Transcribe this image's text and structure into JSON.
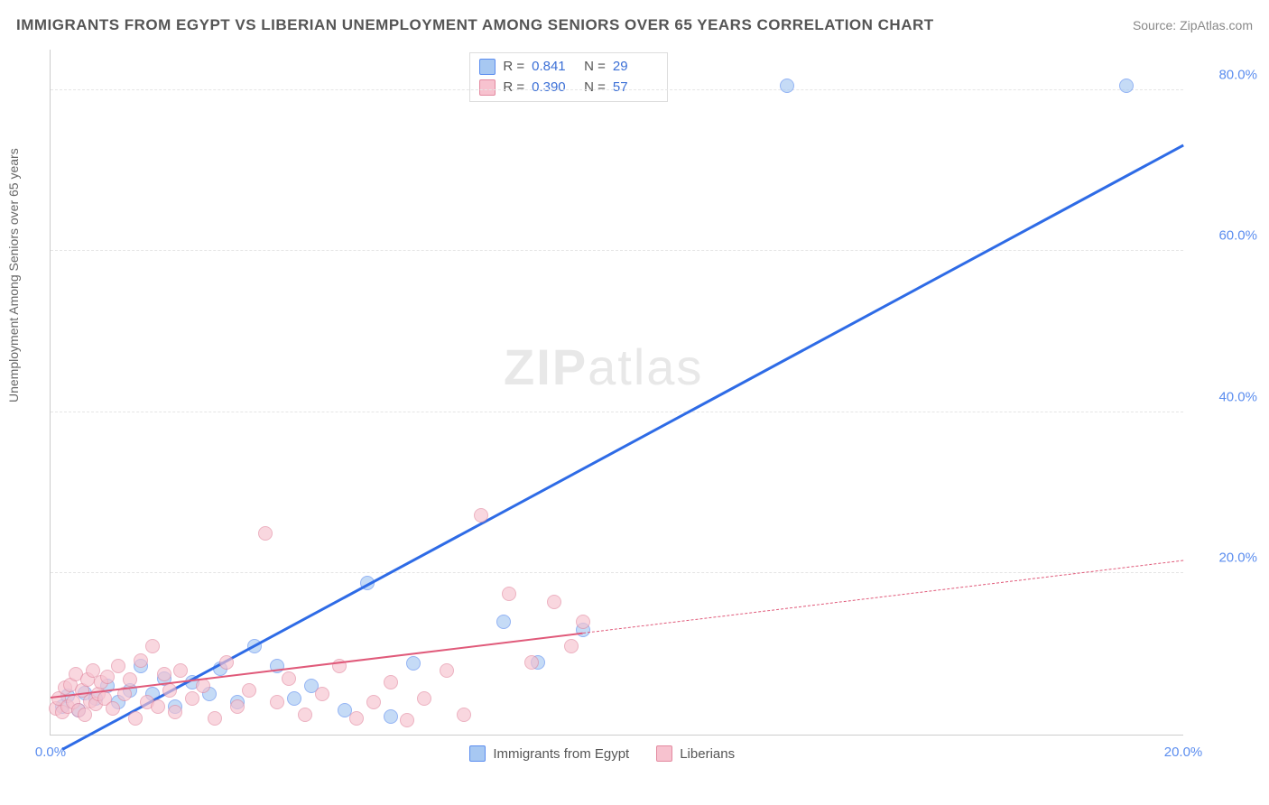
{
  "title": "IMMIGRANTS FROM EGYPT VS LIBERIAN UNEMPLOYMENT AMONG SENIORS OVER 65 YEARS CORRELATION CHART",
  "source_label": "Source: ZipAtlas.com",
  "watermark": "ZIPatlas",
  "y_axis_label": "Unemployment Among Seniors over 65 years",
  "colors": {
    "blue_fill": "#a7c8f2",
    "blue_stroke": "#5b8def",
    "blue_line": "#2e6be6",
    "pink_fill": "#f7c2cf",
    "pink_stroke": "#e38aa0",
    "pink_line": "#e05a7a",
    "tick_text": "#5b8def",
    "grid": "#e5e5e5"
  },
  "chart": {
    "type": "scatter",
    "xlim": [
      0,
      20
    ],
    "ylim": [
      0,
      85
    ],
    "y_ticks": [
      20,
      40,
      60,
      80
    ],
    "y_tick_labels": [
      "20.0%",
      "40.0%",
      "60.0%",
      "80.0%"
    ],
    "x_ticks": [
      0,
      20
    ],
    "x_tick_labels": [
      "0.0%",
      "20.0%"
    ],
    "marker_radius": 8
  },
  "series": [
    {
      "name": "Immigrants from Egypt",
      "color_fill": "#a7c8f2",
      "color_stroke": "#5b8def",
      "R": "0.841",
      "N": "29",
      "trend": {
        "x1": 0.2,
        "y1": -2,
        "x2": 20,
        "y2": 73,
        "color": "#2e6be6",
        "width": 2.5,
        "dash_from_x": null
      },
      "points": [
        [
          0.2,
          3.5
        ],
        [
          0.3,
          4.8
        ],
        [
          0.5,
          3.0
        ],
        [
          0.6,
          5.2
        ],
        [
          0.8,
          4.5
        ],
        [
          1.0,
          6.0
        ],
        [
          1.2,
          4.0
        ],
        [
          1.4,
          5.5
        ],
        [
          1.6,
          8.5
        ],
        [
          1.8,
          5.0
        ],
        [
          2.0,
          7.0
        ],
        [
          2.2,
          3.5
        ],
        [
          2.5,
          6.5
        ],
        [
          2.8,
          5.0
        ],
        [
          3.0,
          8.2
        ],
        [
          3.3,
          4.0
        ],
        [
          3.6,
          11.0
        ],
        [
          4.0,
          8.5
        ],
        [
          4.3,
          4.5
        ],
        [
          4.6,
          6.0
        ],
        [
          5.2,
          3.0
        ],
        [
          5.6,
          18.8
        ],
        [
          6.0,
          2.2
        ],
        [
          6.4,
          8.8
        ],
        [
          8.0,
          14.0
        ],
        [
          8.6,
          9.0
        ],
        [
          9.4,
          13.0
        ],
        [
          13.0,
          80.5
        ],
        [
          19.0,
          80.5
        ]
      ]
    },
    {
      "name": "Liberians",
      "color_fill": "#f7c2cf",
      "color_stroke": "#e38aa0",
      "R": "0.390",
      "N": "57",
      "trend": {
        "x1": 0,
        "y1": 4.5,
        "x2": 20,
        "y2": 21.5,
        "color": "#e05a7a",
        "width": 2,
        "dash_from_x": 9.4
      },
      "points": [
        [
          0.1,
          3.2
        ],
        [
          0.15,
          4.5
        ],
        [
          0.2,
          2.8
        ],
        [
          0.25,
          5.8
        ],
        [
          0.3,
          3.5
        ],
        [
          0.35,
          6.2
        ],
        [
          0.4,
          4.0
        ],
        [
          0.45,
          7.5
        ],
        [
          0.5,
          3.0
        ],
        [
          0.55,
          5.5
        ],
        [
          0.6,
          2.5
        ],
        [
          0.65,
          6.8
        ],
        [
          0.7,
          4.2
        ],
        [
          0.75,
          8.0
        ],
        [
          0.8,
          3.8
        ],
        [
          0.85,
          5.0
        ],
        [
          0.9,
          6.5
        ],
        [
          0.95,
          4.5
        ],
        [
          1.0,
          7.2
        ],
        [
          1.1,
          3.2
        ],
        [
          1.2,
          8.5
        ],
        [
          1.3,
          5.0
        ],
        [
          1.4,
          6.8
        ],
        [
          1.5,
          2.0
        ],
        [
          1.6,
          9.2
        ],
        [
          1.7,
          4.0
        ],
        [
          1.8,
          11.0
        ],
        [
          1.9,
          3.5
        ],
        [
          2.0,
          7.5
        ],
        [
          2.1,
          5.5
        ],
        [
          2.2,
          2.8
        ],
        [
          2.3,
          8.0
        ],
        [
          2.5,
          4.5
        ],
        [
          2.7,
          6.0
        ],
        [
          2.9,
          2.0
        ],
        [
          3.1,
          9.0
        ],
        [
          3.3,
          3.5
        ],
        [
          3.5,
          5.5
        ],
        [
          3.8,
          25.0
        ],
        [
          4.0,
          4.0
        ],
        [
          4.2,
          7.0
        ],
        [
          4.5,
          2.5
        ],
        [
          4.8,
          5.0
        ],
        [
          5.1,
          8.5
        ],
        [
          5.4,
          2.0
        ],
        [
          5.7,
          4.0
        ],
        [
          6.0,
          6.5
        ],
        [
          6.3,
          1.8
        ],
        [
          6.6,
          4.5
        ],
        [
          7.0,
          8.0
        ],
        [
          7.3,
          2.5
        ],
        [
          7.6,
          27.2
        ],
        [
          8.1,
          17.5
        ],
        [
          8.5,
          9.0
        ],
        [
          8.9,
          16.5
        ],
        [
          9.2,
          11.0
        ],
        [
          9.4,
          14.0
        ]
      ]
    }
  ],
  "x_legend": [
    {
      "label": "Immigrants from Egypt",
      "fill": "#a7c8f2",
      "stroke": "#5b8def"
    },
    {
      "label": "Liberians",
      "fill": "#f7c2cf",
      "stroke": "#e38aa0"
    }
  ]
}
